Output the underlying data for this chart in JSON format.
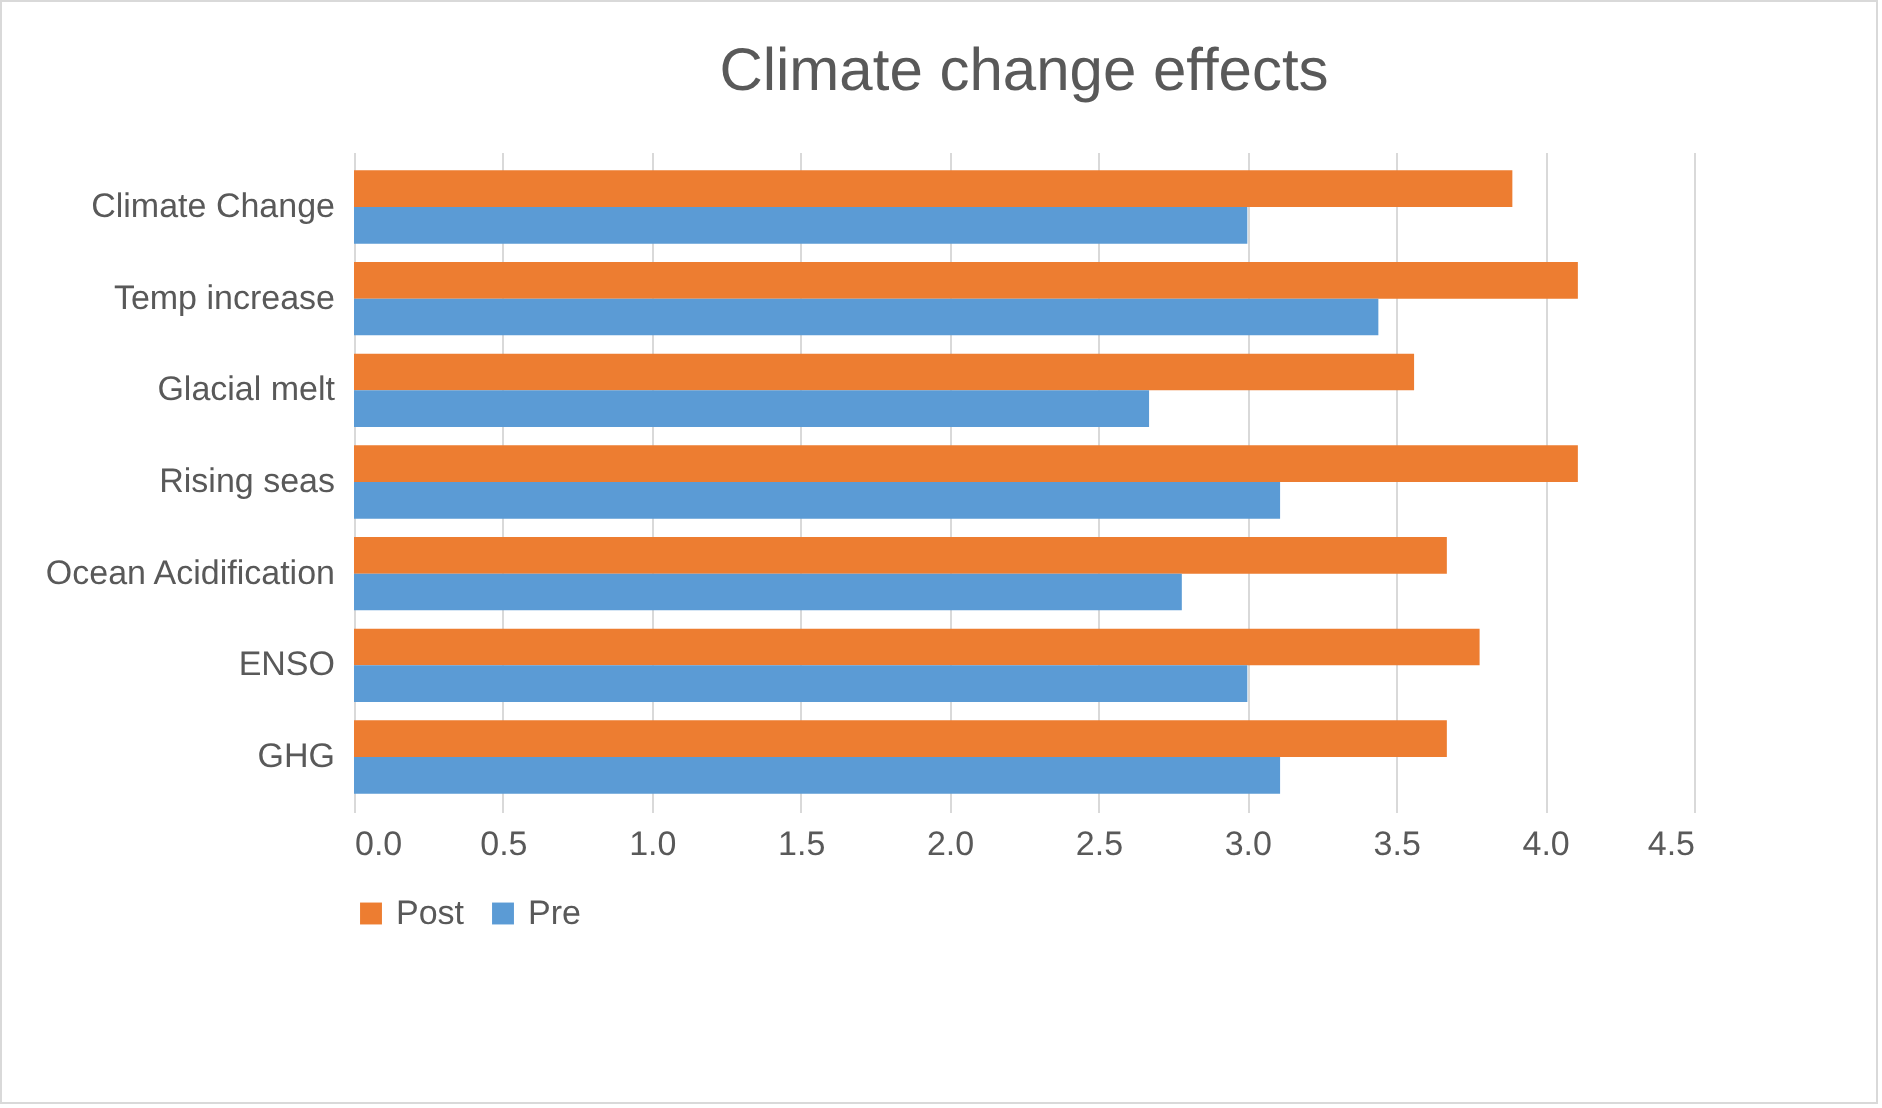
{
  "chart_data": {
    "type": "bar",
    "orientation": "horizontal",
    "title": "Climate change effects",
    "categories": [
      "Climate Change",
      "Temp increase",
      "Glacial melt",
      "Rising seas",
      "Ocean Acidification",
      "ENSO",
      "GHG"
    ],
    "series": [
      {
        "name": "Post",
        "color": "#ed7d31",
        "values": [
          3.89,
          4.11,
          3.56,
          4.11,
          3.67,
          3.78,
          3.67
        ]
      },
      {
        "name": "Pre",
        "color": "#5b9bd5",
        "values": [
          3.0,
          3.44,
          2.67,
          3.11,
          2.78,
          3.0,
          3.11
        ]
      }
    ],
    "xlim": [
      0,
      4.5
    ],
    "xticks": [
      {
        "value": 0,
        "label": "0.0"
      },
      {
        "value": 0.5,
        "label": "0.5"
      },
      {
        "value": 1,
        "label": "1.0"
      },
      {
        "value": 1.5,
        "label": "1.5"
      },
      {
        "value": 2,
        "label": "2.0"
      },
      {
        "value": 2.5,
        "label": "2.5"
      },
      {
        "value": 3,
        "label": "3.0"
      },
      {
        "value": 3.5,
        "label": "3.5"
      },
      {
        "value": 4,
        "label": "4.0"
      },
      {
        "value": 4.5,
        "label": "4.5"
      }
    ],
    "grid": "x",
    "legend": "bottom"
  }
}
